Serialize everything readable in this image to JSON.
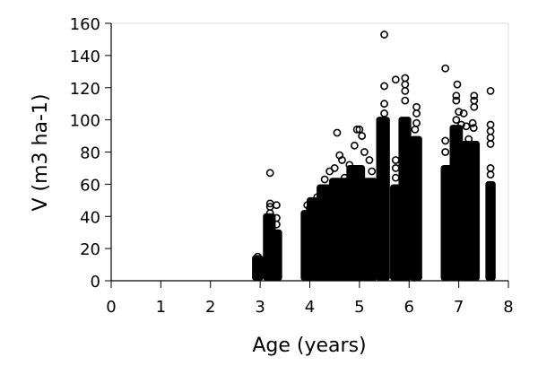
{
  "chart_data": {
    "type": "scatter",
    "title": "",
    "xlabel": "Age (years)",
    "ylabel": "V (m3 ha-1)",
    "xlim": [
      0,
      8
    ],
    "ylim": [
      0,
      160
    ],
    "xticks": [
      "0",
      "1",
      "2",
      "3",
      "4",
      "5",
      "6",
      "7",
      "8"
    ],
    "yticks": [
      "0",
      "20",
      "40",
      "60",
      "80",
      "100",
      "120",
      "140",
      "160"
    ],
    "grid": false,
    "marker": "open-circle",
    "color": "#000000",
    "dense_bands": [
      {
        "x": [
          2.9,
          3.0
        ],
        "y": [
          0,
          14
        ]
      },
      {
        "x": [
          3.12,
          3.25
        ],
        "y": [
          0,
          40
        ]
      },
      {
        "x": [
          3.28,
          3.38
        ],
        "y": [
          0,
          30
        ]
      },
      {
        "x": [
          3.88,
          4.0
        ],
        "y": [
          0,
          42
        ]
      },
      {
        "x": [
          4.0,
          4.2
        ],
        "y": [
          0,
          50
        ]
      },
      {
        "x": [
          4.2,
          4.45
        ],
        "y": [
          0,
          58
        ]
      },
      {
        "x": [
          4.45,
          4.8
        ],
        "y": [
          0,
          62
        ]
      },
      {
        "x": [
          4.8,
          5.05
        ],
        "y": [
          0,
          70
        ]
      },
      {
        "x": [
          5.05,
          5.3
        ],
        "y": [
          0,
          62
        ]
      },
      {
        "x": [
          5.4,
          5.55
        ],
        "y": [
          0,
          100
        ]
      },
      {
        "x": [
          5.68,
          5.78
        ],
        "y": [
          0,
          58
        ]
      },
      {
        "x": [
          5.85,
          5.98
        ],
        "y": [
          0,
          100
        ]
      },
      {
        "x": [
          6.08,
          6.2
        ],
        "y": [
          0,
          88
        ]
      },
      {
        "x": [
          6.7,
          6.8
        ],
        "y": [
          0,
          70
        ]
      },
      {
        "x": [
          6.88,
          7.02
        ],
        "y": [
          0,
          95
        ]
      },
      {
        "x": [
          7.1,
          7.2
        ],
        "y": [
          0,
          85
        ]
      },
      {
        "x": [
          7.26,
          7.36
        ],
        "y": [
          0,
          85
        ]
      },
      {
        "x": [
          7.6,
          7.68
        ],
        "y": [
          0,
          60
        ]
      }
    ],
    "points": [
      [
        2.95,
        15
      ],
      [
        3.2,
        67
      ],
      [
        3.2,
        48
      ],
      [
        3.2,
        46
      ],
      [
        3.2,
        42
      ],
      [
        3.33,
        47
      ],
      [
        3.33,
        39
      ],
      [
        3.33,
        35
      ],
      [
        3.95,
        47
      ],
      [
        4.0,
        45
      ],
      [
        4.15,
        52
      ],
      [
        4.3,
        63
      ],
      [
        4.4,
        68
      ],
      [
        4.5,
        70
      ],
      [
        4.55,
        92
      ],
      [
        4.6,
        78
      ],
      [
        4.65,
        75
      ],
      [
        4.7,
        64
      ],
      [
        4.8,
        72
      ],
      [
        4.9,
        84
      ],
      [
        4.95,
        94
      ],
      [
        5.0,
        94
      ],
      [
        5.05,
        90
      ],
      [
        5.1,
        80
      ],
      [
        5.2,
        75
      ],
      [
        5.25,
        68
      ],
      [
        5.5,
        153
      ],
      [
        5.5,
        121
      ],
      [
        5.5,
        110
      ],
      [
        5.5,
        104
      ],
      [
        5.73,
        125
      ],
      [
        5.73,
        75
      ],
      [
        5.73,
        70
      ],
      [
        5.73,
        64
      ],
      [
        5.92,
        126
      ],
      [
        5.92,
        122
      ],
      [
        5.92,
        118
      ],
      [
        5.92,
        112
      ],
      [
        6.15,
        108
      ],
      [
        6.15,
        104
      ],
      [
        6.15,
        98
      ],
      [
        6.12,
        94
      ],
      [
        6.15,
        10
      ],
      [
        6.1,
        2
      ],
      [
        6.73,
        132
      ],
      [
        6.73,
        87
      ],
      [
        6.73,
        80
      ],
      [
        6.97,
        122
      ],
      [
        6.95,
        115
      ],
      [
        6.95,
        112
      ],
      [
        7.0,
        105
      ],
      [
        6.95,
        100
      ],
      [
        7.05,
        97
      ],
      [
        7.1,
        104
      ],
      [
        7.15,
        96
      ],
      [
        7.2,
        88
      ],
      [
        7.31,
        115
      ],
      [
        7.31,
        112
      ],
      [
        7.31,
        108
      ],
      [
        7.28,
        98
      ],
      [
        7.3,
        95
      ],
      [
        7.64,
        118
      ],
      [
        7.64,
        97
      ],
      [
        7.64,
        93
      ],
      [
        7.64,
        89
      ],
      [
        7.64,
        85
      ],
      [
        7.64,
        70
      ],
      [
        7.64,
        66
      ]
    ]
  }
}
